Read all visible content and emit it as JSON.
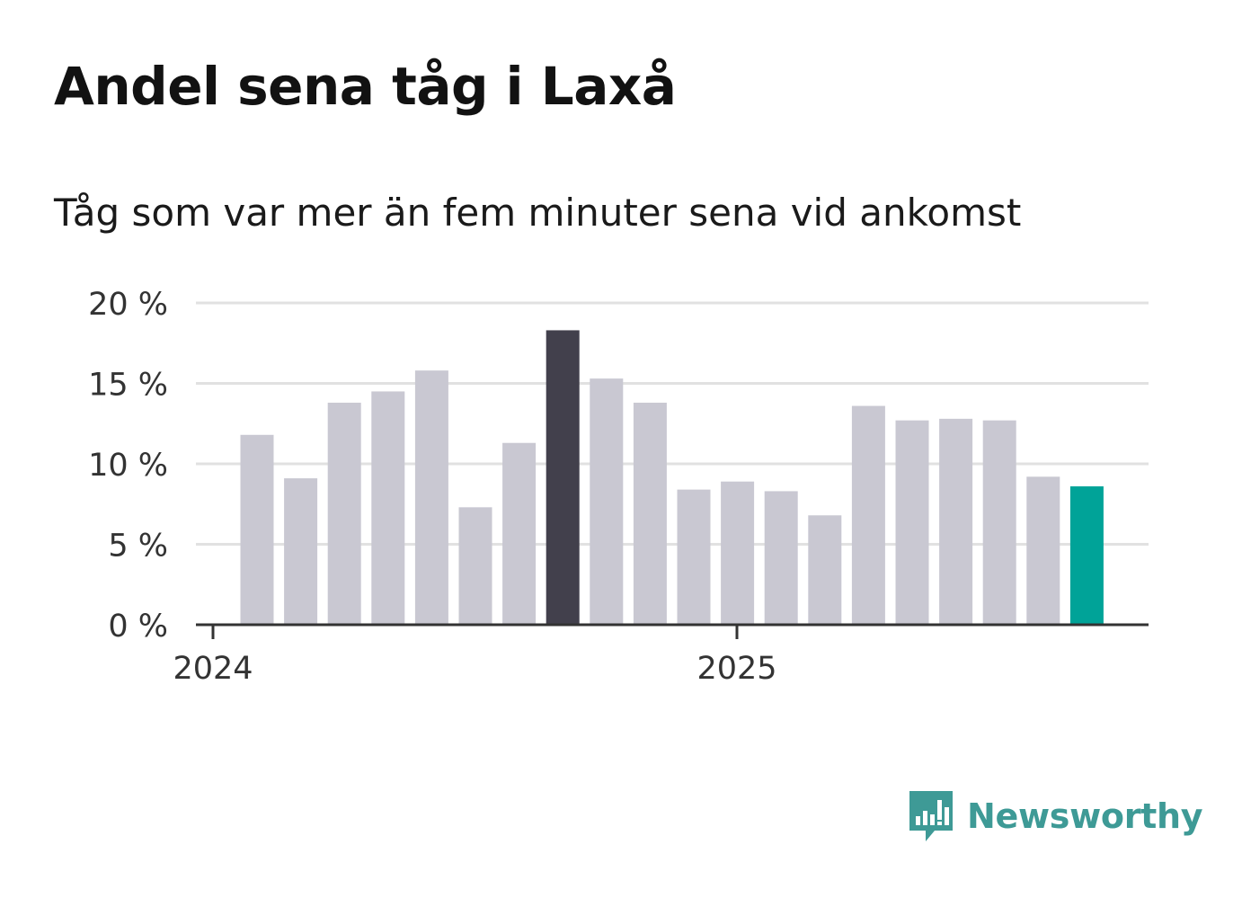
{
  "title": "Andel sena tåg i Laxå",
  "subtitle": "Tåg som var mer än fem minuter sena vid ankomst",
  "brand": {
    "name": "Newsworthy",
    "color": "#3e9a96",
    "icon": "newsworthy-chart-bubble-icon"
  },
  "colors": {
    "default_bar": "#c9c8d2",
    "highlight_bar": "#42404c",
    "latest_bar": "#00a398",
    "grid": "#e1e1e1",
    "axis": "#333333"
  },
  "chart_data": {
    "type": "bar",
    "yticks": [
      "0 %",
      "5 %",
      "10 %",
      "15 %",
      "20 %"
    ],
    "ylim": [
      0,
      20
    ],
    "x_tick_labels": [
      "2024",
      "2025"
    ],
    "values": [
      11.8,
      9.1,
      13.8,
      14.5,
      15.8,
      7.3,
      11.3,
      18.3,
      15.3,
      13.8,
      8.4,
      8.9,
      8.3,
      6.8,
      13.6,
      12.7,
      12.8,
      12.7,
      9.2,
      8.6
    ],
    "highlight_index": 7,
    "latest_index": 19,
    "grid": true
  }
}
